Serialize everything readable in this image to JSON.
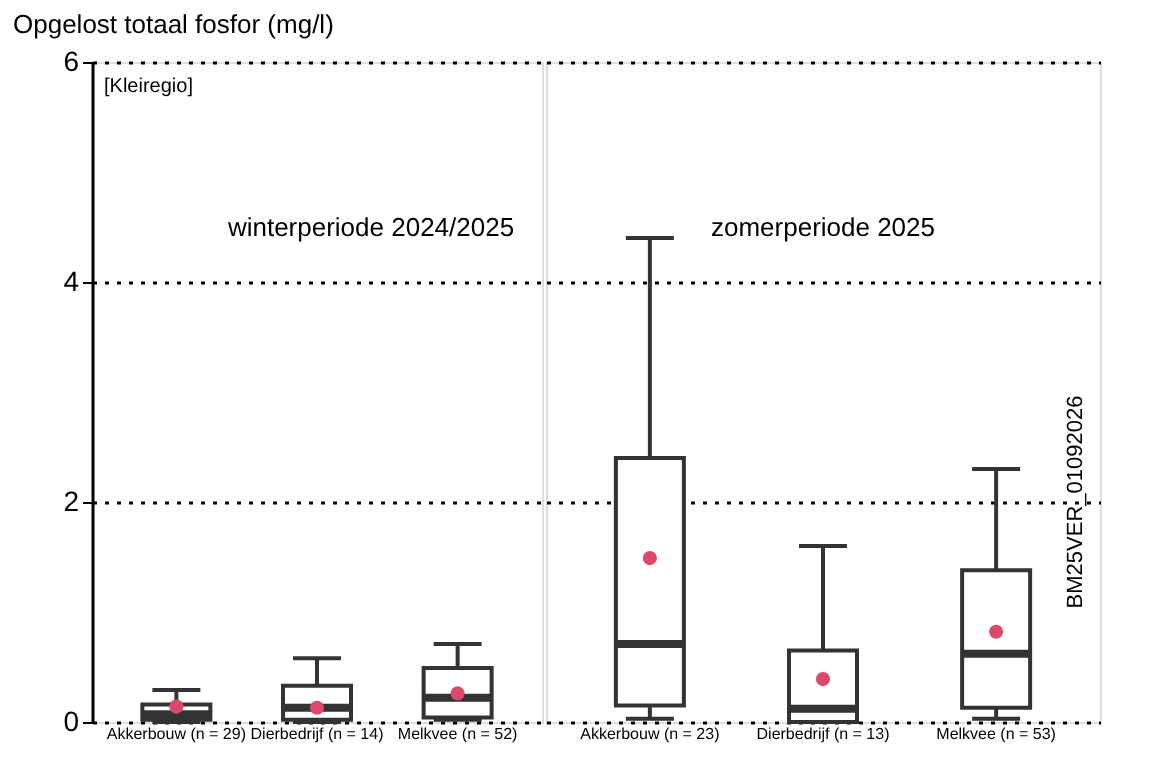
{
  "chart_data": [
    {
      "type": "box",
      "ylabel": "Opgelost totaal fosfor (mg/l)",
      "categories": [
        "Akkerbouw (n = 29)",
        "Dierbedrijf (n = 14)",
        "Melkvee (n = 52)"
      ],
      "ylim": [
        0,
        6
      ],
      "yticks": [
        0,
        2,
        4,
        6
      ],
      "grid": "y",
      "line_style": "dotted",
      "annotations": [
        "[Kleiregio]",
        "winterperiode 2024/2025"
      ],
      "series": [
        {
          "type": "box",
          "color": "#333333",
          "boxes": [
            {
              "low": 0,
              "q1": 0.02,
              "median": 0.07,
              "q3": 0.16,
              "high": 0.29
            },
            {
              "low": 0,
              "q1": 0.02,
              "median": 0.13,
              "q3": 0.33,
              "high": 0.58
            },
            {
              "low": 0.02,
              "q1": 0.04,
              "median": 0.22,
              "q3": 0.49,
              "high": 0.71
            }
          ]
        },
        {
          "type": "scatter",
          "color": "#dc4a6b",
          "marker": "circle",
          "x": [
            "Akkerbouw (n = 29)",
            "Dierbedrijf (n = 14)",
            "Melkvee (n = 52)"
          ],
          "values": [
            0.14,
            0.13,
            0.26
          ]
        }
      ]
    },
    {
      "type": "box",
      "categories": [
        "Akkerbouw (n = 23)",
        "Dierbedrijf (n = 13)",
        "Melkvee (n = 53)"
      ],
      "ylim": [
        0,
        6
      ],
      "yticks": [
        0,
        2,
        4,
        6
      ],
      "grid": "y",
      "line_style": "dotted",
      "tick_labels": "x",
      "annotations": [
        "zomerperiode 2025",
        "BM25VER_01092026"
      ],
      "series": [
        {
          "type": "box",
          "color": "#333333",
          "boxes": [
            {
              "low": 0.03,
              "q1": 0.15,
              "median": 0.71,
              "q3": 2.4,
              "high": 4.4
            },
            {
              "low": 0,
              "q1": 0,
              "median": 0.12,
              "q3": 0.65,
              "high": 1.6
            },
            {
              "low": 0.03,
              "q1": 0.13,
              "median": 0.62,
              "q3": 1.38,
              "high": 2.3
            }
          ]
        },
        {
          "type": "scatter",
          "color": "#dc4a6b",
          "marker": "circle",
          "x": [
            "Akkerbouw (n = 23)",
            "Dierbedrijf (n = 13)",
            "Melkvee (n = 53)"
          ],
          "values": [
            1.49,
            0.39,
            0.82
          ]
        }
      ]
    }
  ]
}
